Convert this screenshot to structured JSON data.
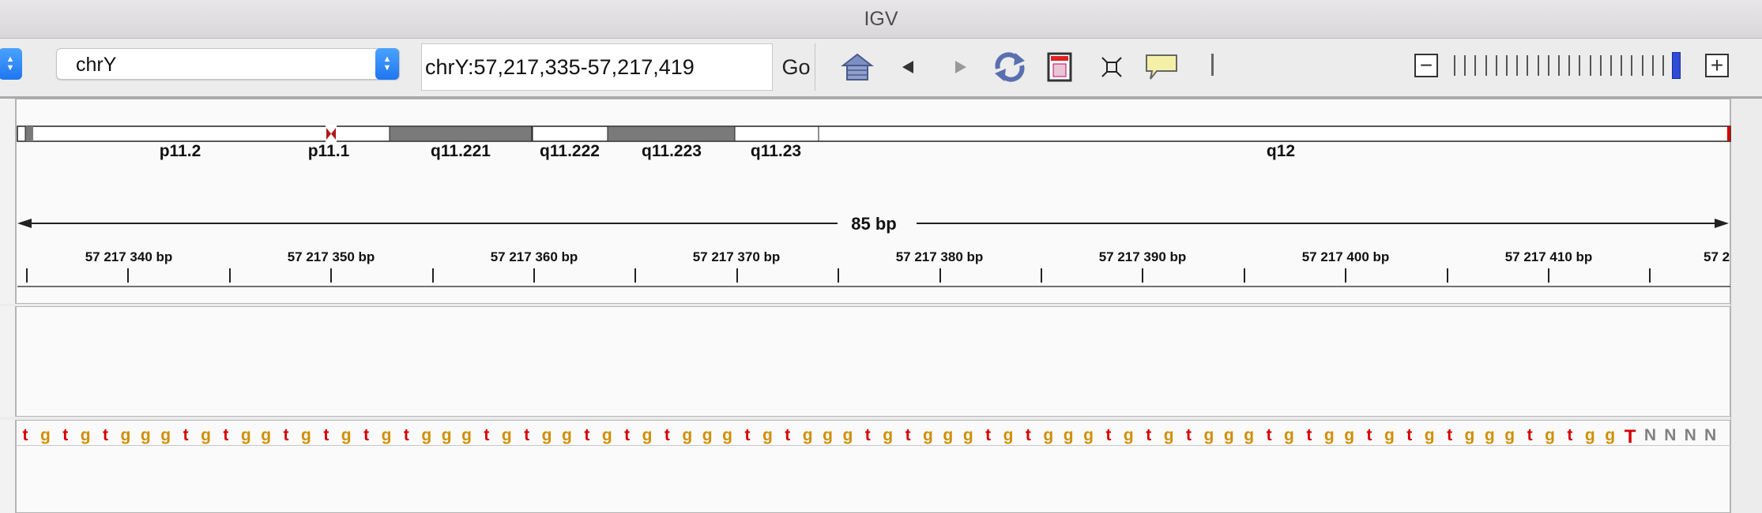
{
  "window": {
    "title": "IGV"
  },
  "toolbar": {
    "chromosome": "chrY",
    "locus": "chrY:57,217,335-57,217,419",
    "go_label": "Go"
  },
  "ideogram": {
    "bands": [
      "p11.2",
      "p11.1",
      "q11.221",
      "q11.222",
      "q11.223",
      "q11.23",
      "q12"
    ]
  },
  "ruler": {
    "span_label": "85 bp",
    "tick_labels": [
      "57 217 340 bp",
      "57 217 350 bp",
      "57 217 360 bp",
      "57 217 370 bp",
      "57 217 380 bp",
      "57 217 390 bp",
      "57 217 400 bp",
      "57 217 410 bp",
      "57 2"
    ]
  },
  "sequence": {
    "bases": "tgtgtgggtgtggtgtgtgtgggtgtggtgtgtgggtgtgggtgtgggtgtgggtgtgtgggtgtggtgtgtgggtgtggTNNNN",
    "colors": {
      "t": "#d40000",
      "g": "#d18f00",
      "T": "#d40000",
      "N": "#808080"
    }
  },
  "colors": {
    "zoom_thumb": "#2e4cd6",
    "stepper": "#1f76f0",
    "band_dark": "#7a7a7a"
  }
}
